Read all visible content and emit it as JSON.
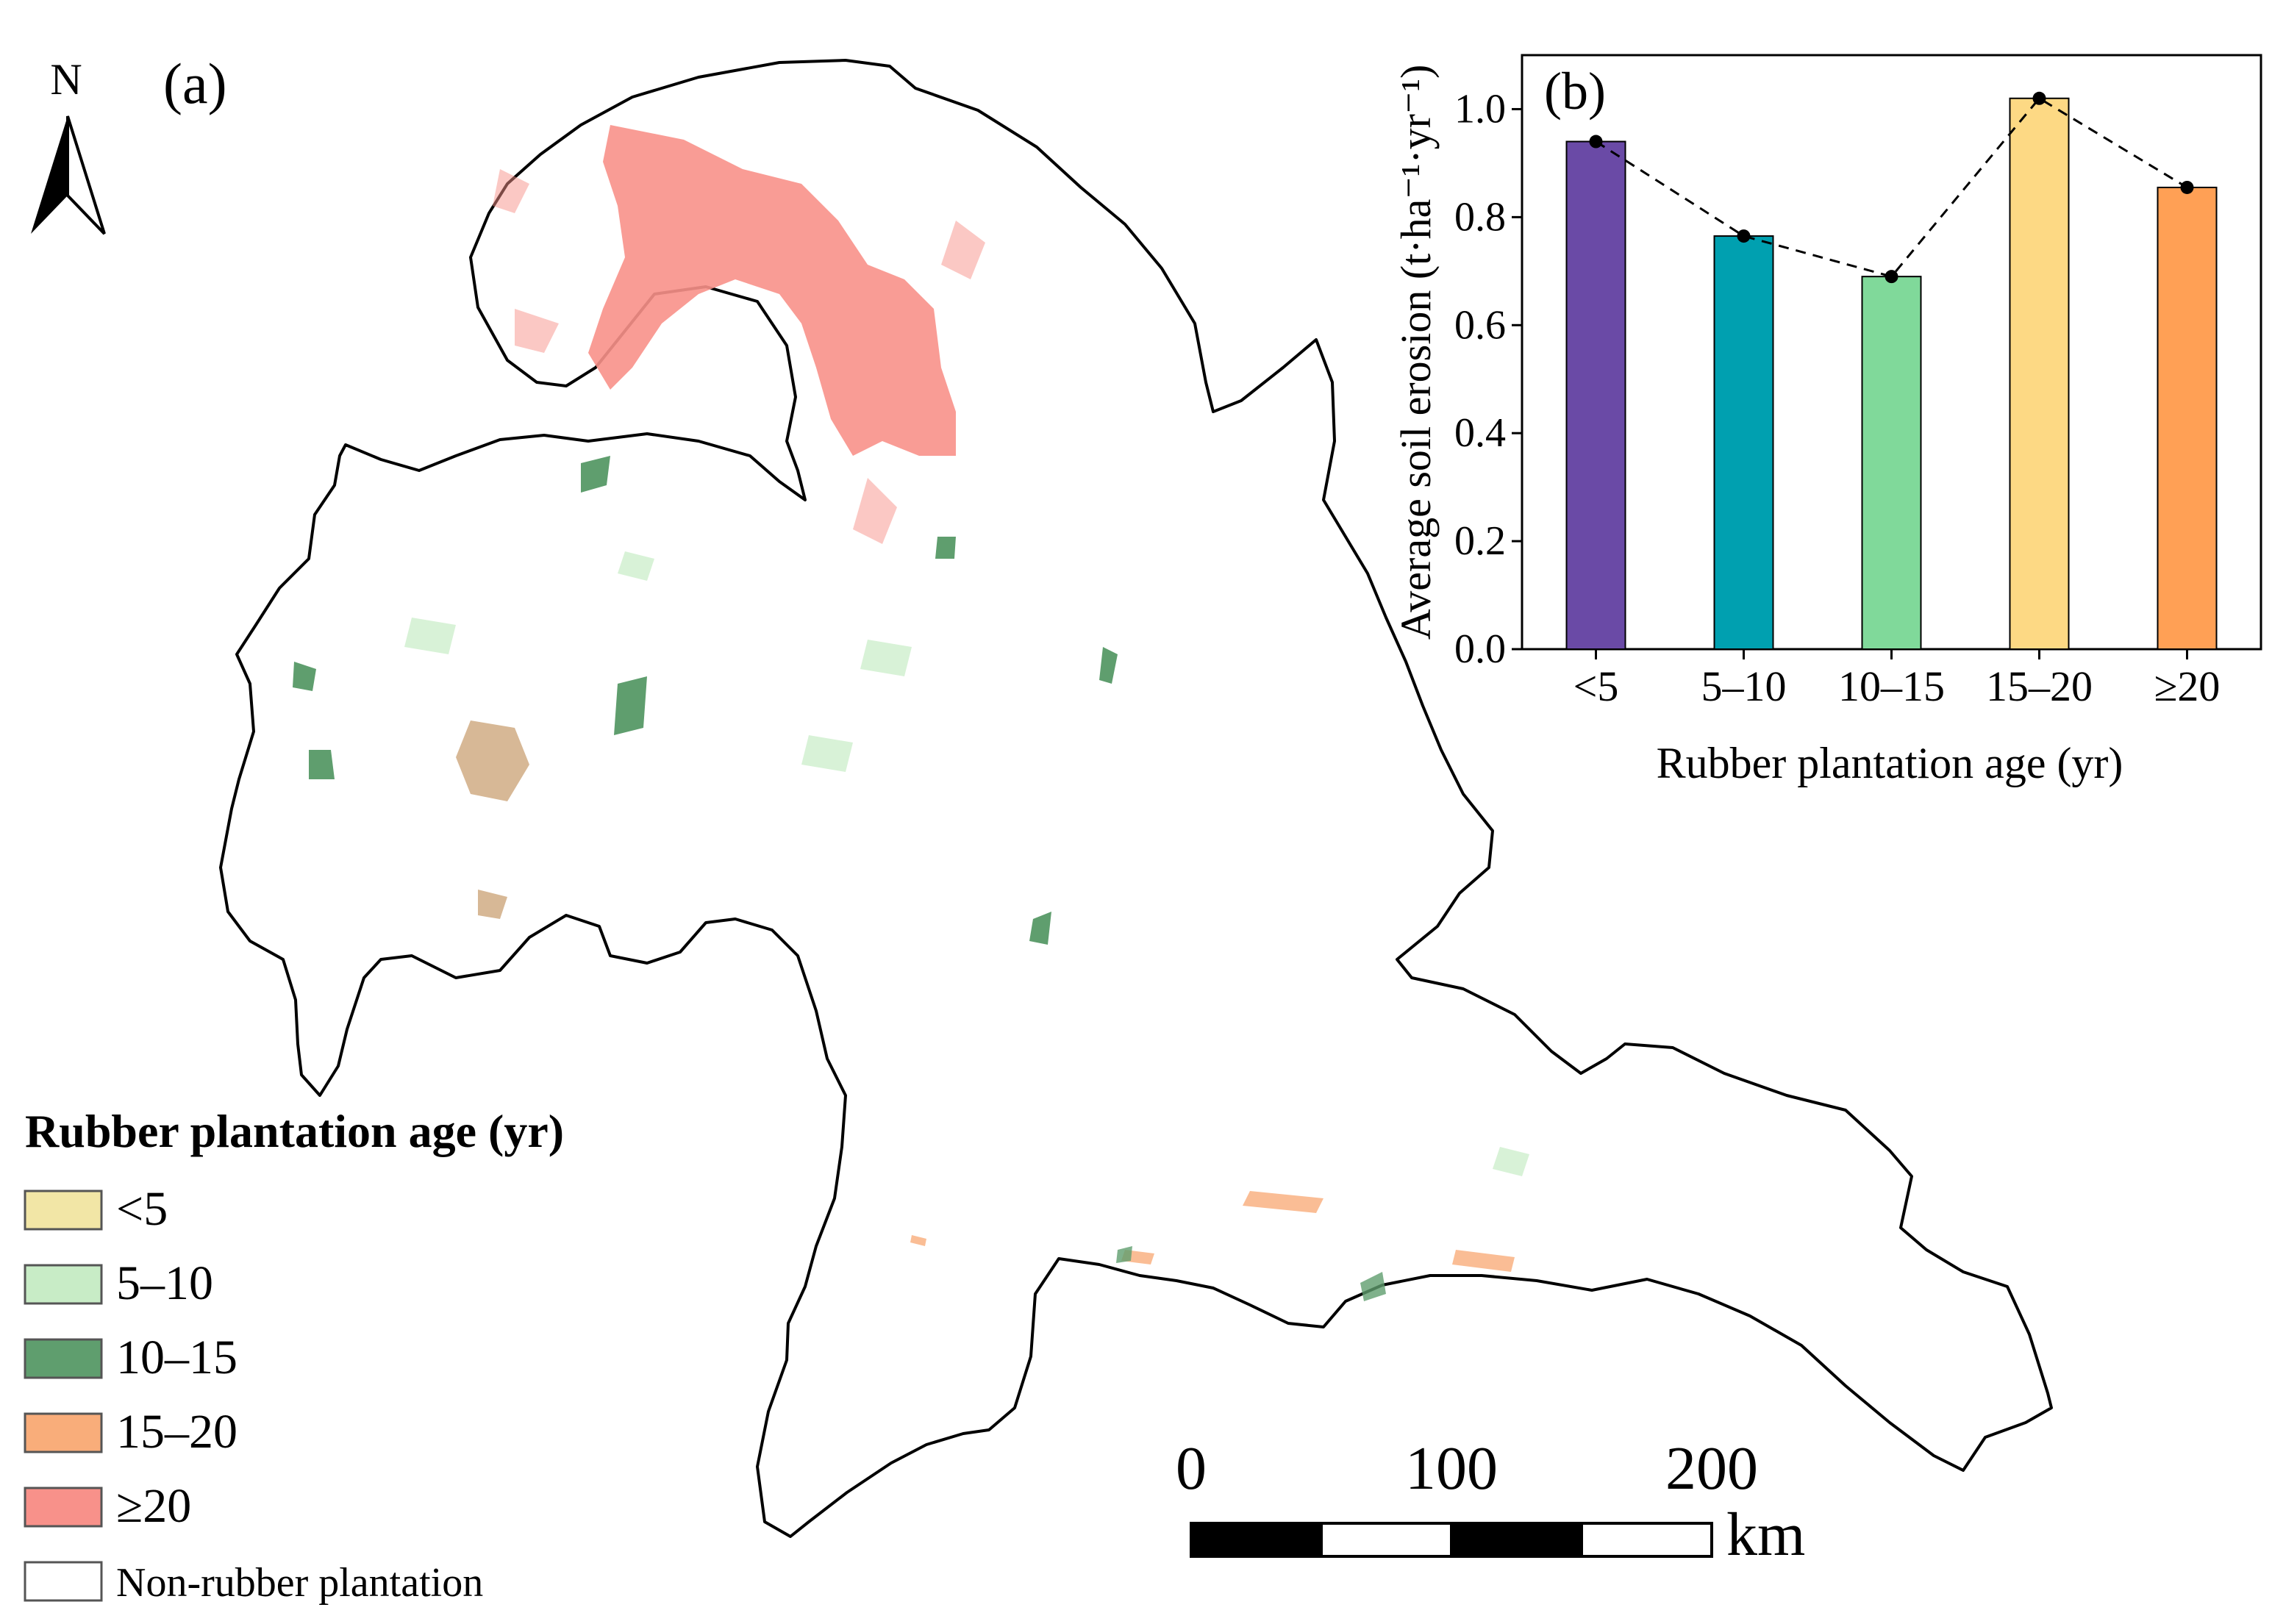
{
  "map_panel": {
    "label": "(a)",
    "north_label": "N",
    "legend": {
      "title": "Rubber plantation age (yr)",
      "items": [
        {
          "label": "<5",
          "color": "#f2e6a6"
        },
        {
          "label": "5–10",
          "color": "#c8ecc6"
        },
        {
          "label": "10–15",
          "color": "#5f9e6e"
        },
        {
          "label": "15–20",
          "color": "#f9ad7a"
        },
        {
          "label": "≥20",
          "color": "#f8918a"
        },
        {
          "label": "Non-rubber plantation",
          "color": "#ffffff"
        }
      ]
    },
    "scale_bar": {
      "ticks": [
        "0",
        "100",
        "200"
      ],
      "unit": "km"
    }
  },
  "chart_data": {
    "type": "bar",
    "panel_label": "(b)",
    "categories": [
      "<5",
      "5–10",
      "10–15",
      "15–20",
      "≥20"
    ],
    "values": [
      0.94,
      0.765,
      0.69,
      1.02,
      0.855
    ],
    "colors": [
      "#6a4aa6",
      "#00a0b0",
      "#80d99a",
      "#fdd984",
      "#ffa055"
    ],
    "xlabel": "Rubber plantation age (yr)",
    "ylabel": "Average soil erosion (t·ha⁻¹·yr⁻¹)",
    "ylim": [
      0,
      1.1
    ],
    "yticks": [
      "0.0",
      "0.2",
      "0.4",
      "0.6",
      "0.8",
      "1.0"
    ],
    "line": "dashed connecting bar tops"
  }
}
